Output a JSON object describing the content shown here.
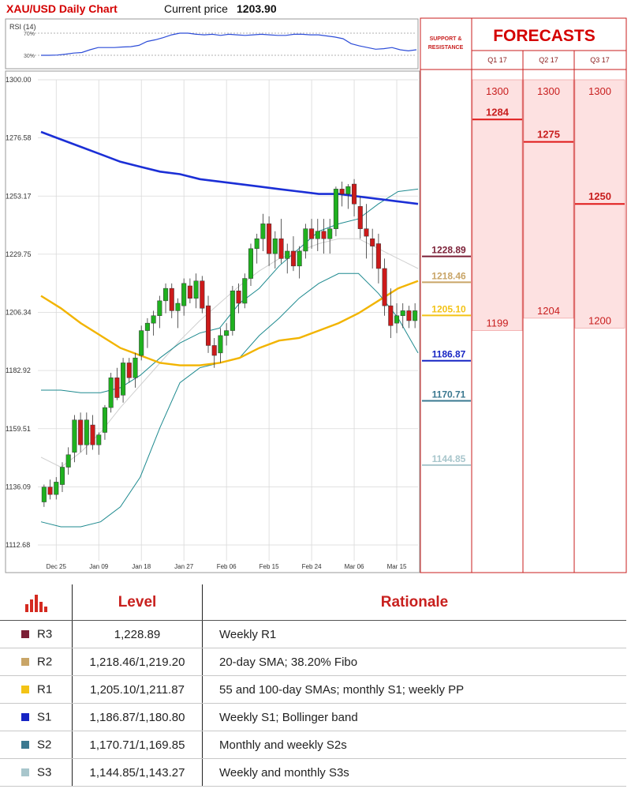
{
  "header": {
    "title": "XAU/USD Daily Chart",
    "price_label": "Current price",
    "price_value": "1203.90"
  },
  "rsi": {
    "label": "RSI (14)",
    "tick_high": "70%",
    "tick_low": "30%",
    "values": [
      30,
      30,
      30.5,
      32,
      34,
      35,
      40,
      44,
      44,
      44,
      45,
      45.5,
      48,
      55,
      58,
      62,
      67,
      70,
      70,
      68,
      67,
      68,
      66,
      68,
      67,
      66,
      67,
      68,
      67,
      66,
      66,
      68,
      68,
      67,
      67,
      65,
      63,
      60,
      51,
      47,
      44,
      41,
      42,
      44,
      40,
      38,
      40
    ]
  },
  "side_panel": {
    "support_title_line1": "SUPPORT &",
    "support_title_line2": "RESISTANCE",
    "forecasts_title": "FORECASTS"
  },
  "colors": {
    "red": "#d40000",
    "r3": "#7b1f36",
    "r2": "#c9a567",
    "r1": "#f3c316",
    "s1": "#1725c4",
    "s2": "#3a7890",
    "s3": "#a8c6cc",
    "candle_up": "#1fb11f",
    "candle_down": "#cc1a1a",
    "sma_blue": "#1b2fd6",
    "sma_yellow": "#f2b400",
    "bollinger": "#1e8a8f",
    "mid_band": "#cfcfcf",
    "forecast_fill": "#fde1e1"
  },
  "chart_data": {
    "type": "candlestick",
    "title": "XAU/USD Daily Chart",
    "y_ticks": [
      "1300.00",
      "1276.58",
      "1253.17",
      "1229.75",
      "1206.34",
      "1182.92",
      "1159.51",
      "1136.09",
      "1112.68"
    ],
    "x_ticks": [
      "Dec 25",
      "Jan 09",
      "Jan 18",
      "Jan 27",
      "Feb 06",
      "Feb 15",
      "Feb 24",
      "Mar 06",
      "Mar 15"
    ],
    "ylim": [
      1107,
      1300
    ],
    "candles": [
      [
        1130,
        1137,
        1128,
        1136
      ],
      [
        1136,
        1139,
        1131,
        1133
      ],
      [
        1133,
        1140,
        1131,
        1138
      ],
      [
        1137,
        1146,
        1134,
        1144
      ],
      [
        1144,
        1152,
        1141,
        1149
      ],
      [
        1150,
        1165,
        1146,
        1163
      ],
      [
        1163,
        1166,
        1150,
        1153
      ],
      [
        1153,
        1166,
        1149,
        1163
      ],
      [
        1161,
        1165,
        1151,
        1153
      ],
      [
        1153,
        1158,
        1149,
        1157
      ],
      [
        1158,
        1169,
        1155,
        1168
      ],
      [
        1168,
        1182,
        1166,
        1180
      ],
      [
        1180,
        1184,
        1171,
        1172
      ],
      [
        1173,
        1188,
        1170,
        1186
      ],
      [
        1186,
        1188,
        1178,
        1180
      ],
      [
        1180,
        1190,
        1176,
        1188
      ],
      [
        1189,
        1201,
        1187,
        1199
      ],
      [
        1199,
        1204,
        1192,
        1202
      ],
      [
        1202,
        1207,
        1197,
        1205
      ],
      [
        1205,
        1213,
        1200,
        1211
      ],
      [
        1211,
        1218,
        1206,
        1216
      ],
      [
        1216,
        1218,
        1204,
        1207
      ],
      [
        1207,
        1212,
        1200,
        1210
      ],
      [
        1209,
        1220,
        1205,
        1218
      ],
      [
        1217,
        1220,
        1210,
        1212
      ],
      [
        1212,
        1222,
        1208,
        1219
      ],
      [
        1219,
        1221,
        1206,
        1208
      ],
      [
        1209,
        1213,
        1190,
        1193
      ],
      [
        1193,
        1196,
        1184,
        1189
      ],
      [
        1190,
        1200,
        1186,
        1197
      ],
      [
        1197,
        1202,
        1193,
        1199
      ],
      [
        1199,
        1217,
        1197,
        1215
      ],
      [
        1215,
        1218,
        1206,
        1210
      ],
      [
        1210,
        1222,
        1208,
        1220
      ],
      [
        1220,
        1234,
        1217,
        1232
      ],
      [
        1232,
        1238,
        1226,
        1236
      ],
      [
        1236,
        1246,
        1231,
        1242
      ],
      [
        1242,
        1245,
        1225,
        1230
      ],
      [
        1230,
        1239,
        1224,
        1236
      ],
      [
        1236,
        1244,
        1226,
        1228
      ],
      [
        1228,
        1234,
        1222,
        1231
      ],
      [
        1231,
        1237,
        1223,
        1225
      ],
      [
        1225,
        1233,
        1220,
        1231
      ],
      [
        1231,
        1242,
        1228,
        1240
      ],
      [
        1240,
        1244,
        1232,
        1236
      ],
      [
        1236,
        1244,
        1231,
        1239
      ],
      [
        1239,
        1244,
        1230,
        1236
      ],
      [
        1236,
        1244,
        1230,
        1240
      ],
      [
        1240,
        1257,
        1237,
        1256
      ],
      [
        1256,
        1259,
        1249,
        1254
      ],
      [
        1254,
        1258,
        1248,
        1257
      ],
      [
        1258,
        1260,
        1245,
        1250
      ],
      [
        1249,
        1253,
        1236,
        1240
      ],
      [
        1240,
        1250,
        1228,
        1237
      ],
      [
        1236,
        1240,
        1224,
        1233
      ],
      [
        1234,
        1238,
        1218,
        1224
      ],
      [
        1224,
        1228,
        1205,
        1209
      ],
      [
        1209,
        1216,
        1196,
        1201
      ],
      [
        1202,
        1210,
        1198,
        1205
      ],
      [
        1205,
        1210,
        1200,
        1207
      ],
      [
        1207,
        1209,
        1200,
        1203
      ],
      [
        1203,
        1210,
        1200,
        1207
      ]
    ],
    "series": [
      {
        "name": "",
        "values": [
          1279,
          1276,
          1273,
          1270,
          1267,
          1265,
          1263,
          1262,
          1260,
          1259,
          1258,
          1257,
          1256,
          1255,
          1254,
          1254,
          1253,
          1252,
          1251,
          1250
        ]
      },
      {
        "name": "",
        "values": [
          1213,
          1208,
          1202,
          1197,
          1192,
          1189,
          1186,
          1185,
          1185,
          1186,
          1188,
          1192,
          1195,
          1196,
          1199,
          1202,
          1206,
          1211,
          1216,
          1219
        ]
      },
      {
        "name": "",
        "values": [
          1175,
          1175,
          1174,
          1174,
          1176,
          1181,
          1188,
          1194,
          1198,
          1200,
          1210,
          1216,
          1225,
          1232,
          1239,
          1242,
          1244,
          1250,
          1255,
          1256
        ]
      },
      {
        "name": "",
        "values": [
          1122,
          1120,
          1120,
          1122,
          1128,
          1140,
          1160,
          1178,
          1184,
          1186,
          1188,
          1197,
          1204,
          1212,
          1218,
          1222,
          1222,
          1214,
          1204,
          1190
        ]
      },
      {
        "name": "",
        "values": [
          1148,
          1144,
          1150,
          1158,
          1168,
          1177,
          1186,
          1195,
          1203,
          1210,
          1217,
          1223,
          1228,
          1231,
          1234,
          1236,
          1236,
          1232,
          1228,
          1224
        ]
      }
    ],
    "sr_levels": [
      {
        "label": "1228.89",
        "value": 1228.89,
        "key": "r3"
      },
      {
        "label": "1218.46",
        "value": 1218.46,
        "key": "r2"
      },
      {
        "label": "1205.10",
        "value": 1205.1,
        "key": "r1"
      },
      {
        "label": "1186.87",
        "value": 1186.87,
        "key": "s1"
      },
      {
        "label": "1170.71",
        "value": 1170.71,
        "key": "s2"
      },
      {
        "label": "1144.85",
        "value": 1144.85,
        "key": "s3"
      }
    ],
    "forecasts": [
      {
        "quarter": "Q1 17",
        "high": 1300,
        "high_label": "1300",
        "mid": 1284,
        "mid_label": "1284",
        "low": 1199,
        "low_label": "1199"
      },
      {
        "quarter": "Q2 17",
        "high": 1300,
        "high_label": "1300",
        "mid": 1275,
        "mid_label": "1275",
        "low": 1204,
        "low_label": "1204"
      },
      {
        "quarter": "Q3 17",
        "high": 1300,
        "high_label": "1300",
        "mid": 1250,
        "mid_label": "1250",
        "low": 1200,
        "low_label": "1200"
      }
    ]
  },
  "table": {
    "header_level": "Level",
    "header_rationale": "Rationale",
    "rows": [
      {
        "name": "R3",
        "level": "1,228.89",
        "rationale": "Weekly R1",
        "color": "#7b1f36"
      },
      {
        "name": "R2",
        "level": "1,218.46/1,219.20",
        "rationale": "20-day SMA; 38.20% Fibo",
        "color": "#c9a567"
      },
      {
        "name": "R1",
        "level": "1,205.10/1,211.87",
        "rationale": "55 and 100-day SMAs; monthly S1; weekly PP",
        "color": "#f3c316"
      },
      {
        "name": "S1",
        "level": "1,186.87/1,180.80",
        "rationale": "Weekly S1; Bollinger band",
        "color": "#1725c4"
      },
      {
        "name": "S2",
        "level": "1,170.71/1,169.85",
        "rationale": "Monthly and weekly S2s",
        "color": "#3a7890"
      },
      {
        "name": "S3",
        "level": "1,144.85/1,143.27",
        "rationale": "Weekly and monthly S3s",
        "color": "#a8c6cc"
      }
    ]
  }
}
